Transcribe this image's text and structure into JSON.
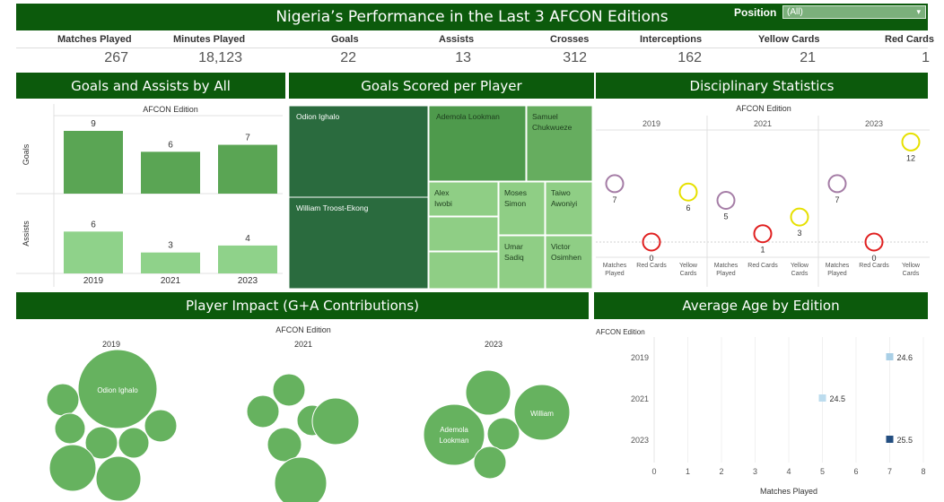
{
  "header": {
    "title": "Nigeria’s Performance in the Last 3 AFCON Editions",
    "position_label": "Position",
    "position_value": "(All)"
  },
  "kpis": [
    {
      "label": "Matches Played",
      "value": "267"
    },
    {
      "label": "Minutes Played",
      "value": "18,123"
    },
    {
      "label": "Goals",
      "value": "22"
    },
    {
      "label": "Assists",
      "value": "13"
    },
    {
      "label": "Crosses",
      "value": "312"
    },
    {
      "label": "Interceptions",
      "value": "162"
    },
    {
      "label": "Yellow Cards",
      "value": "21"
    },
    {
      "label": "Red Cards",
      "value": "1"
    }
  ],
  "sections": {
    "goals_assists": "Goals and Assists by All",
    "goals_per_player": "Goals Scored per Player",
    "disciplinary": "Disciplinary Statistics",
    "impact": "Player Impact (G+A Contributions)",
    "avg_age": "Average Age by Edition"
  },
  "colors": {
    "header_bg": "#0c5a0c",
    "goals_bar": "#5aa554",
    "assists_bar": "#8fd28a",
    "matches_circle": "#a57da6",
    "red_circle": "#e02020",
    "yellow_circle": "#e6e000",
    "bubble": "#66b25f",
    "age_2019": "#a9cfe6",
    "age_2021": "#bcdcee",
    "age_2023": "#234e80"
  },
  "chart_data": [
    {
      "type": "bar",
      "panel": "goals_assists",
      "header": "AFCON Edition",
      "categories": [
        "2019",
        "2021",
        "2023"
      ],
      "series": [
        {
          "name": "Goals",
          "values": [
            9,
            6,
            7
          ]
        },
        {
          "name": "Assists",
          "values": [
            6,
            3,
            4
          ]
        }
      ]
    },
    {
      "type": "treemap",
      "panel": "goals_per_player",
      "players": [
        "Odion Ighalo",
        "William Troost-Ekong",
        "Ademola Lookman",
        "Samuel Chukwueze",
        "Alex Iwobi",
        "Moses Simon",
        "Taiwo Awoniyi",
        "Umar Sadiq",
        "Victor Osimhen"
      ]
    },
    {
      "type": "scatter",
      "panel": "disciplinary",
      "header": "AFCON Edition",
      "editions": [
        "2019",
        "2021",
        "2023"
      ],
      "measures": [
        "Matches Played",
        "Red Cards",
        "Yellow Cards"
      ],
      "values": [
        {
          "edition": "2019",
          "matches": 7,
          "red": 0,
          "yellow": 6
        },
        {
          "edition": "2021",
          "matches": 5,
          "red": 1,
          "yellow": 3
        },
        {
          "edition": "2023",
          "matches": 7,
          "red": 0,
          "yellow": 12
        }
      ]
    },
    {
      "type": "bubble",
      "panel": "impact",
      "header": "AFCON Edition",
      "editions": [
        "2019",
        "2021",
        "2023"
      ],
      "labels": [
        "Odion Ighalo",
        "Ademola Lookman",
        "William"
      ]
    },
    {
      "type": "scatter",
      "panel": "avg_age",
      "header": "AFCON Edition",
      "xlabel": "Matches Played",
      "x_ticks": [
        "0",
        "1",
        "2",
        "3",
        "4",
        "5",
        "6",
        "7",
        "8"
      ],
      "xlim": [
        0,
        8
      ],
      "points": [
        {
          "edition": "2019",
          "matches": 7,
          "age": "24.6"
        },
        {
          "edition": "2021",
          "matches": 5,
          "age": "24.5"
        },
        {
          "edition": "2023",
          "matches": 7,
          "age": "25.5"
        }
      ]
    }
  ]
}
